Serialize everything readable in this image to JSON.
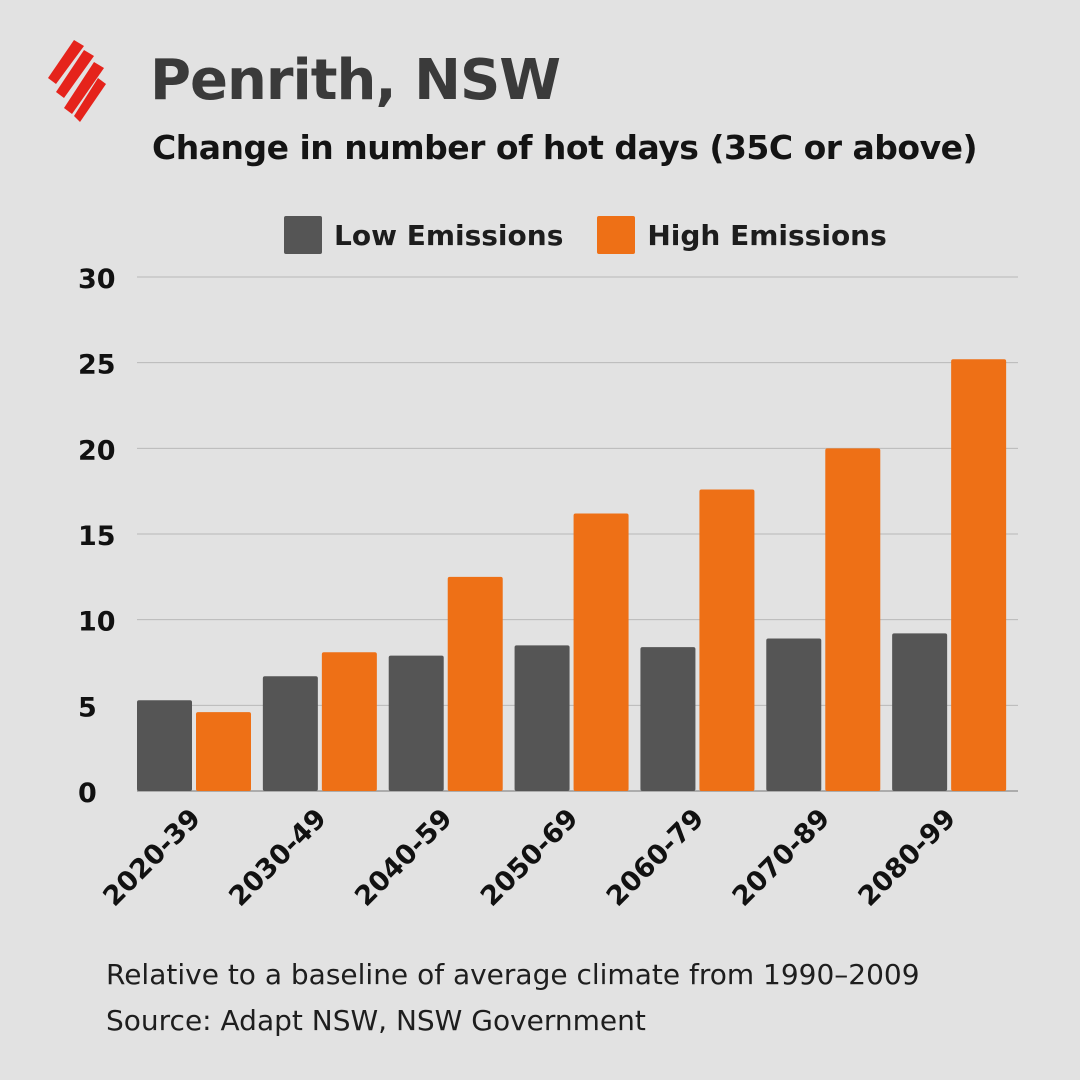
{
  "title": "Penrith, NSW",
  "subtitle": "Change in number of hot days (35C or above)",
  "colors": {
    "low": "#555555",
    "high": "#ee7016",
    "brand": "#e5231b",
    "grid": "#b8b8b8"
  },
  "icons": {
    "logo": "sbs-logo-icon"
  },
  "legend": {
    "low_label": "Low Emissions",
    "high_label": "High Emissions"
  },
  "chart_data": {
    "type": "bar",
    "categories": [
      "2020-39",
      "2030-49",
      "2040-59",
      "2050-69",
      "2060-79",
      "2070-89",
      "2080-99"
    ],
    "series": [
      {
        "name": "Low Emissions",
        "values": [
          5.3,
          6.7,
          7.9,
          8.5,
          8.4,
          8.9,
          9.2
        ]
      },
      {
        "name": "High Emissions",
        "values": [
          4.6,
          8.1,
          12.5,
          16.2,
          17.6,
          20.0,
          25.2
        ]
      }
    ],
    "yticks": [
      0,
      5,
      10,
      15,
      20,
      25,
      30
    ],
    "ylim": [
      0,
      30
    ],
    "xlabel": "",
    "ylabel": "",
    "grid": true,
    "legend_position": "top"
  },
  "footnotes": {
    "line1": "Relative to a baseline of average climate from 1990–2009",
    "line2": "Source: Adapt NSW, NSW Government"
  }
}
